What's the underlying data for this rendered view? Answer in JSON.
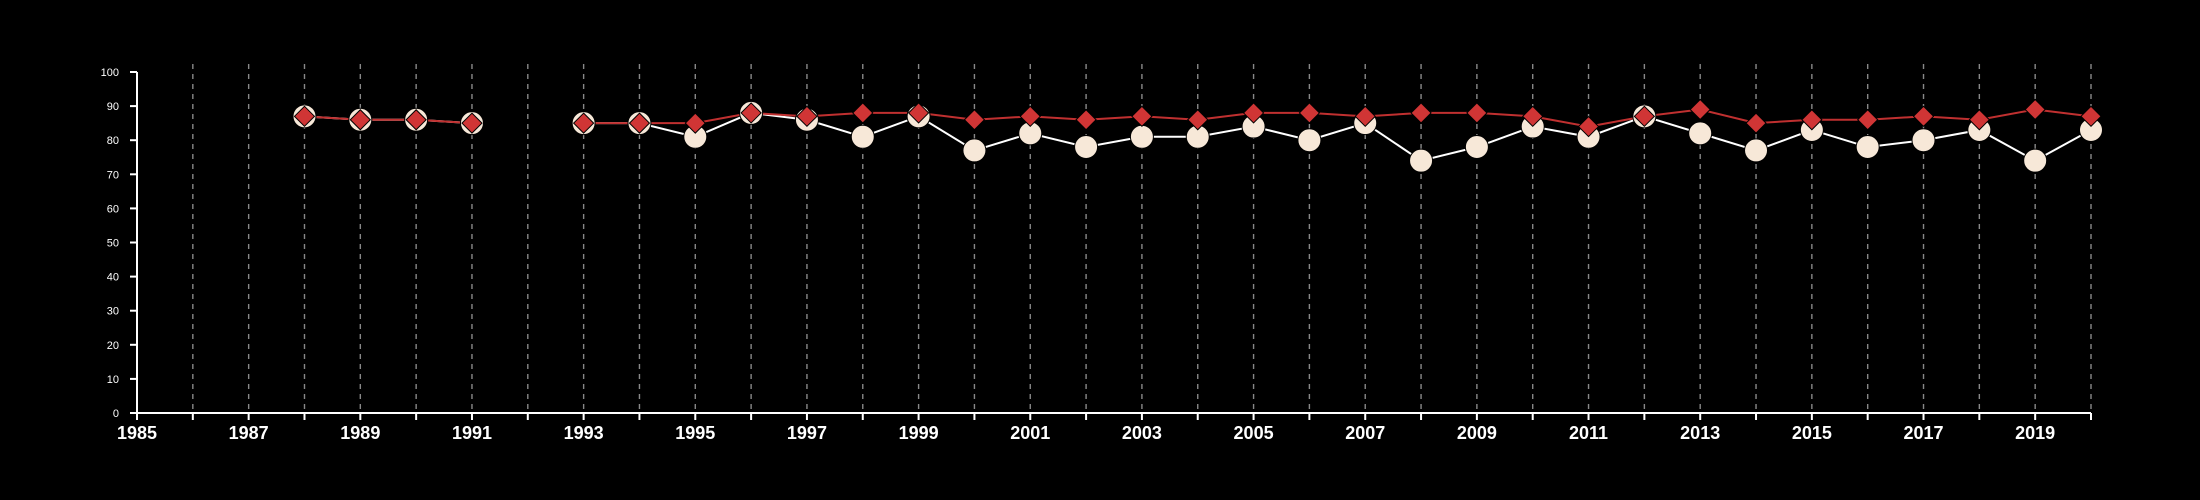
{
  "chart_data": {
    "type": "line",
    "title": "",
    "xlabel": "",
    "ylabel": "",
    "xlim": [
      1985,
      2020
    ],
    "ylim": [
      0,
      100
    ],
    "x_ticks": [
      1985,
      1987,
      1989,
      1991,
      1993,
      1995,
      1997,
      1999,
      2001,
      2003,
      2005,
      2007,
      2009,
      2011,
      2013,
      2015,
      2017,
      2019
    ],
    "y_ticks": [
      0,
      10,
      20,
      30,
      40,
      50,
      60,
      70,
      80,
      90,
      100
    ],
    "grid": "vertical dashed line at every year",
    "legend": "none",
    "background": "#000000",
    "axis_color": "#ffffff",
    "grid_color": "#888888",
    "series": [
      {
        "marker": "circle",
        "color": "#f7e8d8",
        "line_color": "#ffffff",
        "x": [
          1988,
          1989,
          1990,
          1991,
          1993,
          1994,
          1995,
          1996,
          1997,
          1998,
          1999,
          2000,
          2001,
          2002,
          2003,
          2004,
          2005,
          2006,
          2007,
          2008,
          2009,
          2010,
          2011,
          2012,
          2013,
          2014,
          2015,
          2016,
          2017,
          2018,
          2019,
          2020
        ],
        "values": [
          87,
          86,
          86,
          85,
          85,
          85,
          81,
          88,
          86,
          81,
          87,
          77,
          82,
          78,
          81,
          81,
          84,
          80,
          85,
          74,
          78,
          84,
          81,
          87,
          82,
          77,
          83,
          78,
          80,
          83,
          74,
          83
        ]
      },
      {
        "marker": "diamond",
        "color": "#d03535",
        "line_color": "#c03030",
        "x": [
          1988,
          1989,
          1990,
          1991,
          1993,
          1994,
          1995,
          1996,
          1997,
          1998,
          1999,
          2000,
          2001,
          2002,
          2003,
          2004,
          2005,
          2006,
          2007,
          2008,
          2009,
          2010,
          2011,
          2012,
          2013,
          2014,
          2015,
          2016,
          2017,
          2018,
          2019,
          2020
        ],
        "values": [
          87,
          86,
          86,
          85,
          85,
          85,
          85,
          88,
          87,
          88,
          88,
          86,
          87,
          86,
          87,
          86,
          88,
          88,
          87,
          88,
          88,
          87,
          84,
          87,
          89,
          85,
          86,
          86,
          87,
          86,
          89,
          87
        ]
      }
    ]
  }
}
